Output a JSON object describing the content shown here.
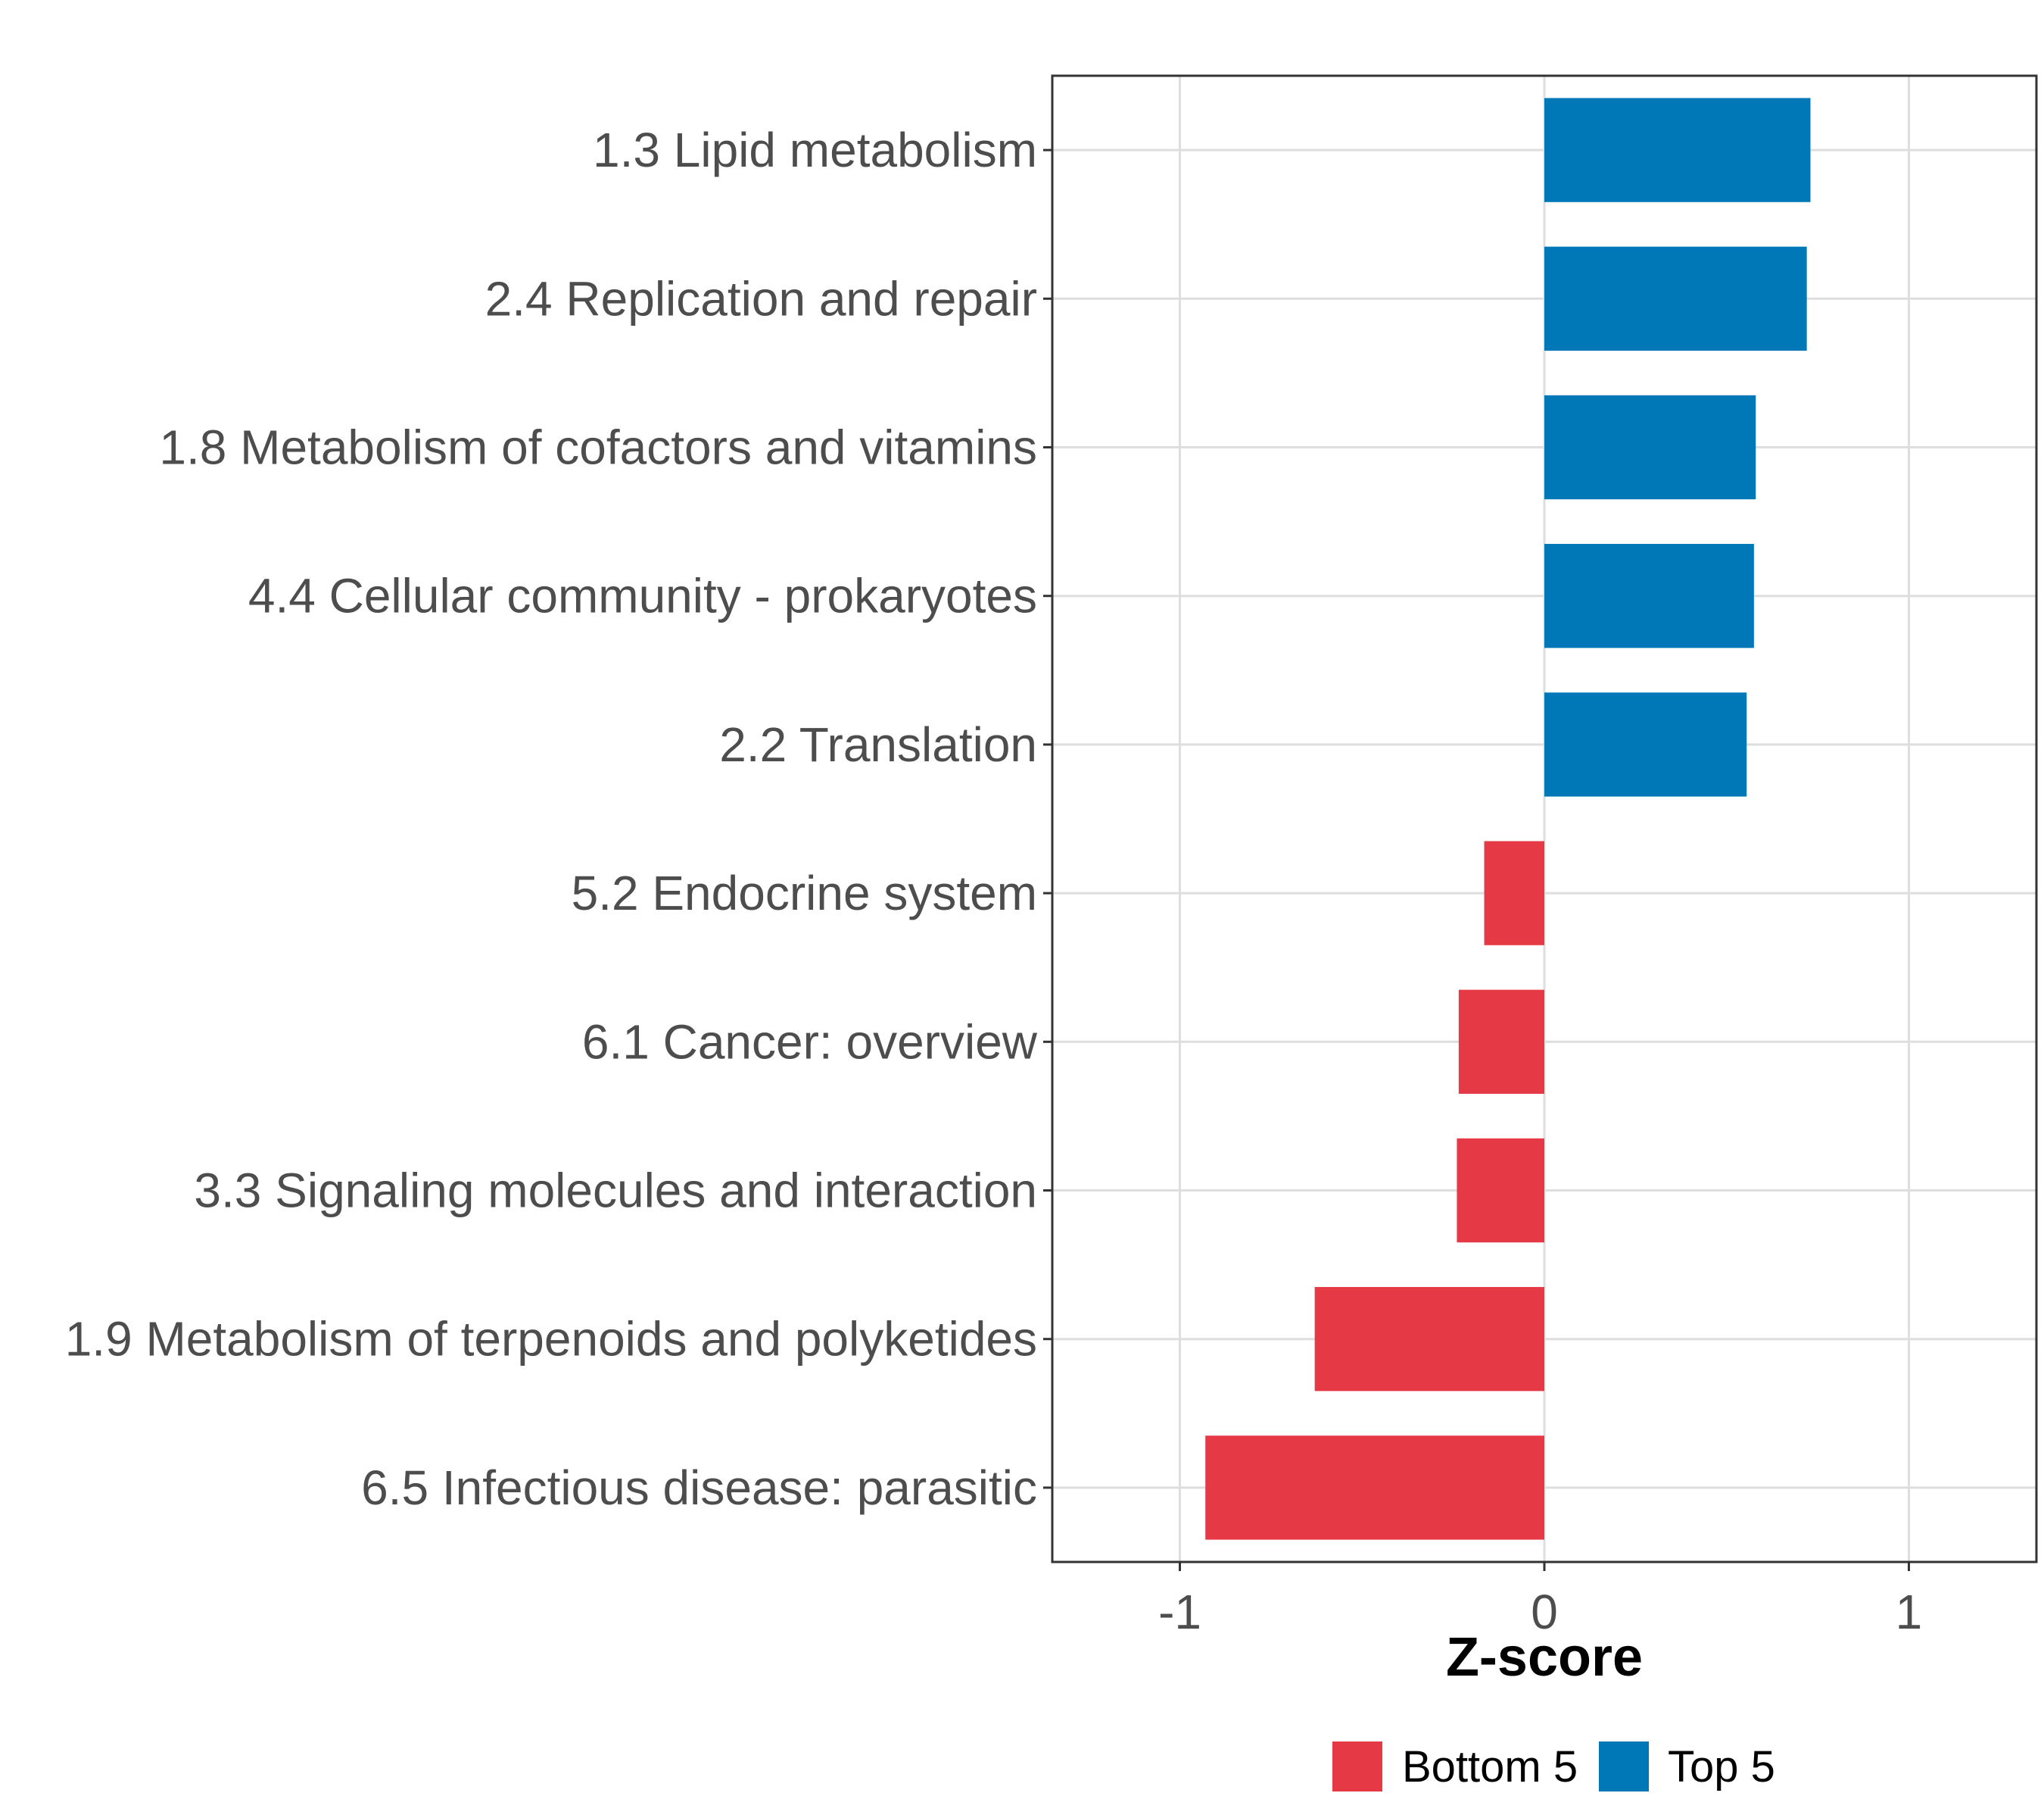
{
  "chart_data": {
    "type": "bar",
    "orientation": "horizontal",
    "title": "",
    "xlabel": "Z-score",
    "ylabel": "",
    "xlim": [
      -1.35,
      1.35
    ],
    "xticks": [
      -1,
      0,
      1
    ],
    "xtick_labels": [
      "-1",
      "0",
      "1"
    ],
    "grid": true,
    "legend_position": "bottom",
    "categories": [
      "1.3 Lipid metabolism",
      "2.4 Replication and repair",
      "1.8 Metabolism of cofactors and vitamins",
      "4.4 Cellular community - prokaryotes",
      "2.2 Translation",
      "5.2 Endocrine system",
      "6.1 Cancer: overview",
      "3.3 Signaling molecules and interaction",
      "1.9 Metabolism of terpenoids and polyketides",
      "6.5 Infectious disease: parasitic"
    ],
    "values": [
      0.73,
      0.72,
      0.58,
      0.575,
      0.555,
      -0.165,
      -0.235,
      -0.24,
      -0.63,
      -0.93
    ],
    "groups": [
      "Top 5",
      "Top 5",
      "Top 5",
      "Top 5",
      "Top 5",
      "Bottom 5",
      "Bottom 5",
      "Bottom 5",
      "Bottom 5",
      "Bottom 5"
    ],
    "legend": [
      {
        "name": "Bottom 5",
        "color": "#e63946"
      },
      {
        "name": "Top 5",
        "color": "#0077b6"
      }
    ]
  }
}
